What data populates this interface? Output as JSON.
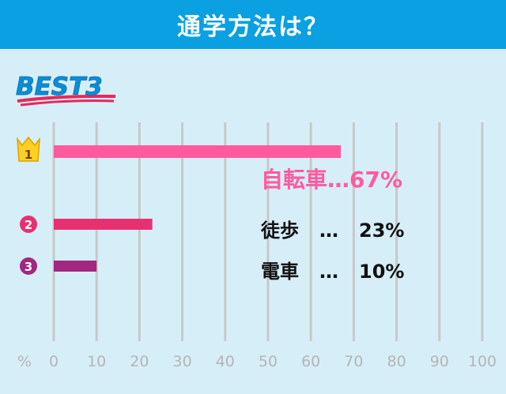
{
  "header": {
    "title": "通学方法は？"
  },
  "badge": {
    "text": "BEST3"
  },
  "colors": {
    "header_bg": "#0aa0e2",
    "background": "#d6eef8",
    "grid": "#c8c8c8",
    "rank1": "#ff5a9e",
    "rank2": "#e83070",
    "rank3": "#a0287e",
    "crown": "#ffd020"
  },
  "chart_data": {
    "type": "bar",
    "orientation": "horizontal",
    "title": "通学方法は？",
    "categories": [
      "自転車",
      "徒歩",
      "電車"
    ],
    "values": [
      67,
      23,
      10
    ],
    "ranks": [
      "1",
      "2",
      "3"
    ],
    "value_labels": [
      "67%",
      "23%",
      "10%"
    ],
    "xlabel": "%",
    "xlim": [
      0,
      100
    ],
    "xticks": [
      0,
      10,
      20,
      30,
      40,
      50,
      60,
      70,
      80,
      90,
      100
    ],
    "grid": true
  },
  "labels": {
    "dots": "…"
  }
}
